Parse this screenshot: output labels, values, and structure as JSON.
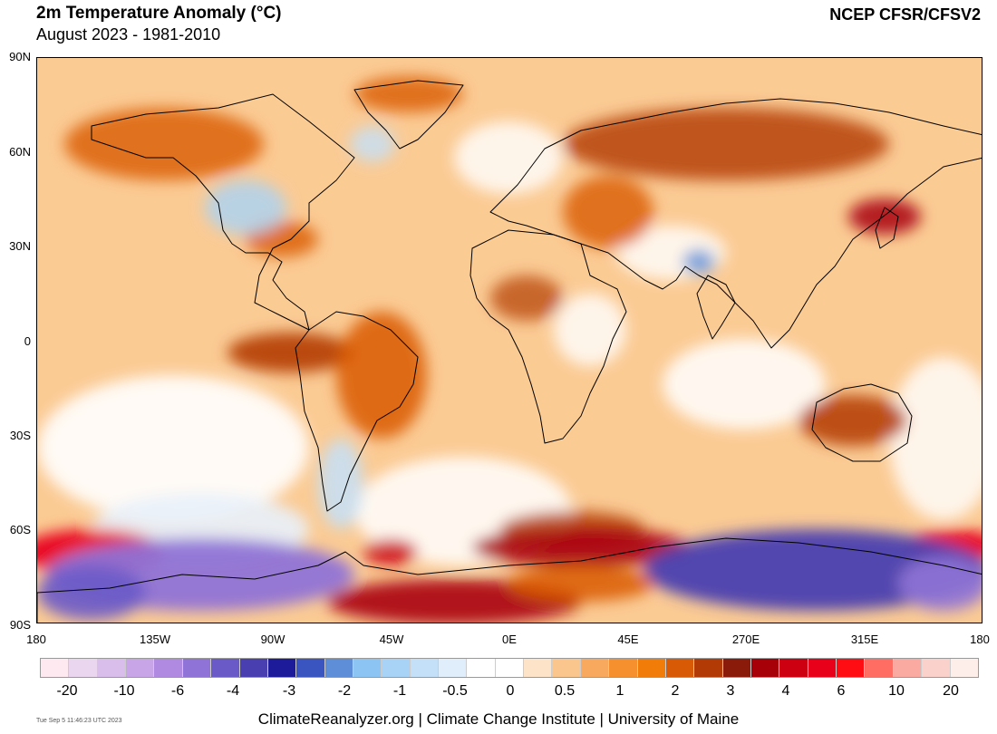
{
  "header": {
    "title": "2m Temperature Anomaly (°C)",
    "subtitle": "August 2023 - 1981-2010",
    "source": "NCEP CFSR/CFSV2"
  },
  "map": {
    "lat_labels": [
      "90N",
      "60N",
      "30N",
      "0",
      "30S",
      "60S",
      "90S"
    ],
    "lon_labels": [
      "180",
      "135W",
      "90W",
      "45W",
      "0E",
      "45E",
      "270E",
      "315E",
      "180"
    ],
    "background": "#fbcb94"
  },
  "legend": {
    "colors": [
      "#fde9ef",
      "#ead6ee",
      "#d9bdea",
      "#c8a5e6",
      "#b08ae0",
      "#8f73d6",
      "#6a5ac8",
      "#4a3fb0",
      "#1e1b9a",
      "#3a55c0",
      "#5f8ed8",
      "#8cc4f4",
      "#a9d3f6",
      "#c4e0f8",
      "#e0eefb",
      "#ffffff",
      "#ffffff",
      "#fde3c8",
      "#fbc58e",
      "#f9a95d",
      "#f68f2e",
      "#f27c08",
      "#d95a04",
      "#b23a05",
      "#8a1a0a",
      "#a80008",
      "#cc0010",
      "#e8001a",
      "#ff0d12",
      "#ff6d63",
      "#fbaaa2",
      "#fbd2cb",
      "#fdeeea"
    ],
    "labels": [
      "-20",
      "-10",
      "-6",
      "-4",
      "-3",
      "-2",
      "-1",
      "-0.5",
      "0",
      "0.5",
      "1",
      "2",
      "3",
      "4",
      "6",
      "10",
      "20"
    ]
  },
  "footer": {
    "credit": "ClimateReanalyzer.org | Climate Change Institute | University of Maine",
    "timestamp": "Tue Sep  5 11:46:23 UTC 2023"
  }
}
